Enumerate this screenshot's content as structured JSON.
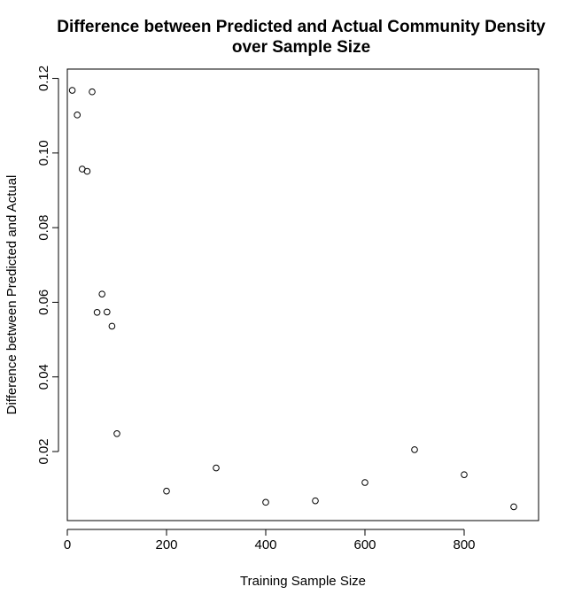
{
  "chart_data": {
    "type": "scatter",
    "title_line1": "Difference between Predicted and Actual Community Density",
    "title_line2": "over Sample Size",
    "xlabel": "Training Sample Size",
    "ylabel": "Difference between Predicted and Actual",
    "xlim": [
      0,
      950
    ],
    "ylim": [
      0.0015,
      0.1225
    ],
    "x_ticks": [
      0,
      200,
      400,
      600,
      800
    ],
    "y_ticks": [
      0.02,
      0.04,
      0.06,
      0.08,
      0.1,
      0.12
    ],
    "y_tick_labels": [
      "0.02",
      "0.04",
      "0.06",
      "0.08",
      "0.10",
      "0.12"
    ],
    "grid": false,
    "legend": "none",
    "marker": "open-circle",
    "points": [
      {
        "x": 10,
        "y": 0.1168
      },
      {
        "x": 20,
        "y": 0.1102
      },
      {
        "x": 30,
        "y": 0.0957
      },
      {
        "x": 40,
        "y": 0.0951
      },
      {
        "x": 50,
        "y": 0.1164
      },
      {
        "x": 60,
        "y": 0.0573
      },
      {
        "x": 70,
        "y": 0.0622
      },
      {
        "x": 80,
        "y": 0.0574
      },
      {
        "x": 90,
        "y": 0.0536
      },
      {
        "x": 100,
        "y": 0.0248
      },
      {
        "x": 200,
        "y": 0.0094
      },
      {
        "x": 300,
        "y": 0.0156
      },
      {
        "x": 400,
        "y": 0.0064
      },
      {
        "x": 500,
        "y": 0.0068
      },
      {
        "x": 600,
        "y": 0.0117
      },
      {
        "x": 700,
        "y": 0.0205
      },
      {
        "x": 800,
        "y": 0.0138
      },
      {
        "x": 900,
        "y": 0.0052
      }
    ]
  }
}
